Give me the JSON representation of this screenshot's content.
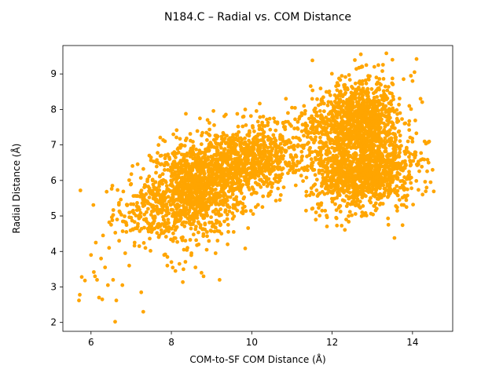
{
  "chart_data": {
    "type": "scatter",
    "title": "N184.C – Radial vs. COM Distance",
    "xlabel": "COM-to-SF COM Distance (Å)",
    "ylabel": "Radial Distance (Å)",
    "xlim": [
      5.3,
      15.0
    ],
    "ylim": [
      1.75,
      9.8
    ],
    "xticks": [
      6,
      8,
      10,
      12,
      14
    ],
    "yticks": [
      2,
      3,
      4,
      5,
      6,
      7,
      8,
      9
    ],
    "xtick_labels": [
      "6",
      "8",
      "10",
      "12",
      "14"
    ],
    "ytick_labels": [
      "2",
      "3",
      "4",
      "5",
      "6",
      "7",
      "8",
      "9"
    ],
    "grid": false,
    "legend": "none",
    "marker_color": "#ffa500",
    "series": [
      {
        "points": [
          [
            5.7,
            2.62
          ],
          [
            5.72,
            2.78
          ],
          [
            5.77,
            3.28
          ],
          [
            5.85,
            3.18
          ],
          [
            6.0,
            3.9
          ],
          [
            6.07,
            3.42
          ],
          [
            6.1,
            3.3
          ],
          [
            6.12,
            4.25
          ],
          [
            6.15,
            3.2
          ],
          [
            6.2,
            2.7
          ],
          [
            6.25,
            3.8
          ],
          [
            6.28,
            2.65
          ],
          [
            6.3,
            4.45
          ],
          [
            6.35,
            3.55
          ],
          [
            6.42,
            3.05
          ],
          [
            6.45,
            4.1
          ],
          [
            6.5,
            4.75
          ],
          [
            6.55,
            3.2
          ],
          [
            6.6,
            2.02
          ],
          [
            6.63,
            2.62
          ],
          [
            6.65,
            4.9
          ],
          [
            6.7,
            4.3
          ],
          [
            6.72,
            5.1
          ],
          [
            6.78,
            3.05
          ],
          [
            6.85,
            3.95
          ],
          [
            6.88,
            4.55
          ],
          [
            6.9,
            5.3
          ],
          [
            6.95,
            3.6
          ],
          [
            7.0,
            4.95
          ],
          [
            7.05,
            5.15
          ],
          [
            7.1,
            4.65
          ],
          [
            7.18,
            5.25
          ],
          [
            7.2,
            4.15
          ],
          [
            7.25,
            2.85
          ],
          [
            7.3,
            2.3
          ],
          [
            7.32,
            5.55
          ],
          [
            7.38,
            4.85
          ],
          [
            7.42,
            5.2
          ],
          [
            7.5,
            5.7
          ],
          [
            7.55,
            4.95
          ],
          [
            7.62,
            5.4
          ],
          [
            7.7,
            5.9
          ],
          [
            7.75,
            4.6
          ],
          [
            7.82,
            3.9
          ],
          [
            7.9,
            3.6
          ],
          [
            8.0,
            3.7
          ],
          [
            8.1,
            3.45
          ],
          [
            8.2,
            3.65
          ],
          [
            8.3,
            3.5
          ],
          [
            8.4,
            4.1
          ],
          [
            8.5,
            3.95
          ],
          [
            8.6,
            3.55
          ],
          [
            8.75,
            3.4
          ],
          [
            8.8,
            3.3
          ],
          [
            9.2,
            3.2
          ],
          [
            9.1,
            3.95
          ],
          [
            9.4,
            4.2
          ],
          [
            9.55,
            4.55
          ],
          [
            9.75,
            5.1
          ],
          [
            9.8,
            7.8
          ],
          [
            10.1,
            5.25
          ],
          [
            10.45,
            5.6
          ],
          [
            10.7,
            5.45
          ],
          [
            10.85,
            8.3
          ],
          [
            10.9,
            7.9
          ],
          [
            11.0,
            8.05
          ],
          [
            11.15,
            7.45
          ],
          [
            11.3,
            8.1
          ],
          [
            11.35,
            5.15
          ],
          [
            11.5,
            5.2
          ],
          [
            11.6,
            5.1
          ],
          [
            11.75,
            5.15
          ],
          [
            11.8,
            7.95
          ],
          [
            12.1,
            4.95
          ],
          [
            12.35,
            4.9
          ],
          [
            12.75,
            9.2
          ],
          [
            12.85,
            9.25
          ],
          [
            13.05,
            9.2
          ],
          [
            13.15,
            9.25
          ],
          [
            13.35,
            9.58
          ],
          [
            13.5,
            9.4
          ],
          [
            13.55,
            4.38
          ],
          [
            13.4,
            4.75
          ],
          [
            13.85,
            5.25
          ],
          [
            14.0,
            8.8
          ],
          [
            14.05,
            9.05
          ],
          [
            14.1,
            9.42
          ],
          [
            14.2,
            8.3
          ],
          [
            14.25,
            6.6
          ],
          [
            14.3,
            7.1
          ],
          [
            14.4,
            6.5
          ],
          [
            14.5,
            6.3
          ],
          [
            14.35,
            5.8
          ],
          [
            14.45,
            5.95
          ]
        ],
        "clusters": [
          {
            "cx": 7.65,
            "cy": 5.2,
            "sx": 0.55,
            "sy": 0.45,
            "n": 260
          },
          {
            "cx": 8.6,
            "cy": 5.75,
            "sx": 0.55,
            "sy": 0.65,
            "n": 900
          },
          {
            "cx": 9.6,
            "cy": 6.5,
            "sx": 0.6,
            "sy": 0.5,
            "n": 600
          },
          {
            "cx": 10.4,
            "cy": 6.8,
            "sx": 0.4,
            "sy": 0.55,
            "n": 220
          },
          {
            "cx": 11.4,
            "cy": 6.9,
            "sx": 0.35,
            "sy": 0.55,
            "n": 130
          },
          {
            "cx": 12.4,
            "cy": 7.6,
            "sx": 0.45,
            "sy": 0.5,
            "n": 550
          },
          {
            "cx": 12.9,
            "cy": 7.9,
            "sx": 0.45,
            "sy": 0.5,
            "n": 450
          },
          {
            "cx": 12.6,
            "cy": 6.1,
            "sx": 0.45,
            "sy": 0.45,
            "n": 550
          },
          {
            "cx": 13.3,
            "cy": 6.4,
            "sx": 0.45,
            "sy": 0.5,
            "n": 420
          },
          {
            "cx": 12.0,
            "cy": 5.9,
            "sx": 0.3,
            "sy": 0.5,
            "n": 120
          }
        ]
      }
    ]
  }
}
